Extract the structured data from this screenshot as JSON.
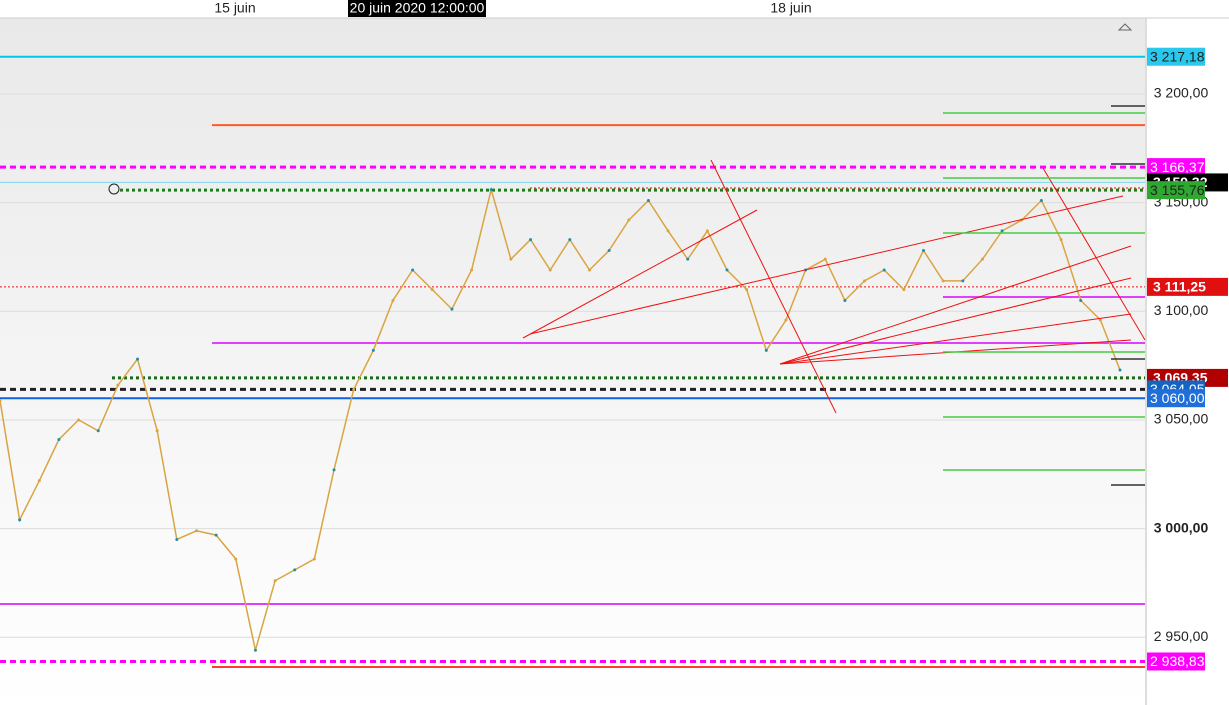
{
  "chart_data": {
    "type": "line",
    "x_labels": [
      "15 juin",
      "20 juin 2020 12:00:00",
      "18 juin"
    ],
    "values": [
      3059,
      3004,
      3022,
      3041,
      3050,
      3045,
      3066,
      3078,
      3045,
      2995,
      2999,
      2997,
      2986,
      2944,
      2976,
      2981,
      2986,
      3027,
      3064,
      3082,
      3105,
      3119,
      3110,
      3101,
      3119,
      3156,
      3124,
      3133,
      3119,
      3133,
      3119,
      3128,
      3142,
      3151,
      3137,
      3124,
      3137,
      3119,
      3110,
      3082,
      3096,
      3119,
      3124,
      3105,
      3114,
      3119,
      3110,
      3128,
      3114,
      3114,
      3124,
      3137,
      3142,
      3151,
      3133,
      3105,
      3096,
      3073
    ],
    "color": "#d9a441",
    "ylim": [
      2918.8,
      3235
    ],
    "yticks": [
      {
        "value": 3200,
        "label": "3 200,00"
      },
      {
        "value": 3150,
        "label": "3 150,00"
      },
      {
        "value": 3100,
        "label": "3 100,00"
      },
      {
        "value": 3050,
        "label": "3 050,00"
      },
      {
        "value": 3000,
        "label": "3 000,00"
      },
      {
        "value": 2950,
        "label": "2 950,00"
      }
    ],
    "grid": true,
    "levels": [
      {
        "value": 3217.18,
        "label": "3 217,18",
        "color": "#00c8e8",
        "style": "solid"
      },
      {
        "value": 3185.7,
        "color": "#ff5a2a",
        "style": "solid"
      },
      {
        "value": 3166.37,
        "label": "3 166,37",
        "color": "#ff00ff",
        "style": "dashed"
      },
      {
        "value": 3159.32,
        "label": "3 159,32",
        "color": "#7fd7ef",
        "style": "solid"
      },
      {
        "value": 3155.76,
        "label": "3 155,76",
        "color": "#1a7f1a",
        "style": "dotted"
      },
      {
        "value": 3111.25,
        "label": "3 111,25",
        "color": "#ee1111",
        "style": "dotted"
      },
      {
        "value": 3085.4,
        "color": "#e040fb",
        "style": "solid"
      },
      {
        "value": 3069.35,
        "label": "3 069,35",
        "color": "#1a6b1a",
        "style": "dotted"
      },
      {
        "value": 3064.05,
        "label": "3 064,05",
        "color": "#222222",
        "style": "dashed"
      },
      {
        "value": 3060.0,
        "label": "3 060,00",
        "color": "#1060e0",
        "style": "solid"
      },
      {
        "value": 2965.3,
        "color": "#e040fb",
        "style": "solid"
      },
      {
        "value": 2938.83,
        "label": "2 938,83",
        "color": "#ff00ff",
        "style": "dashed"
      },
      {
        "value": 2936.3,
        "color": "#ff3b30",
        "style": "solid"
      },
      {
        "value": 3106.6,
        "color": "#e040fb",
        "style": "solid"
      }
    ]
  }
}
